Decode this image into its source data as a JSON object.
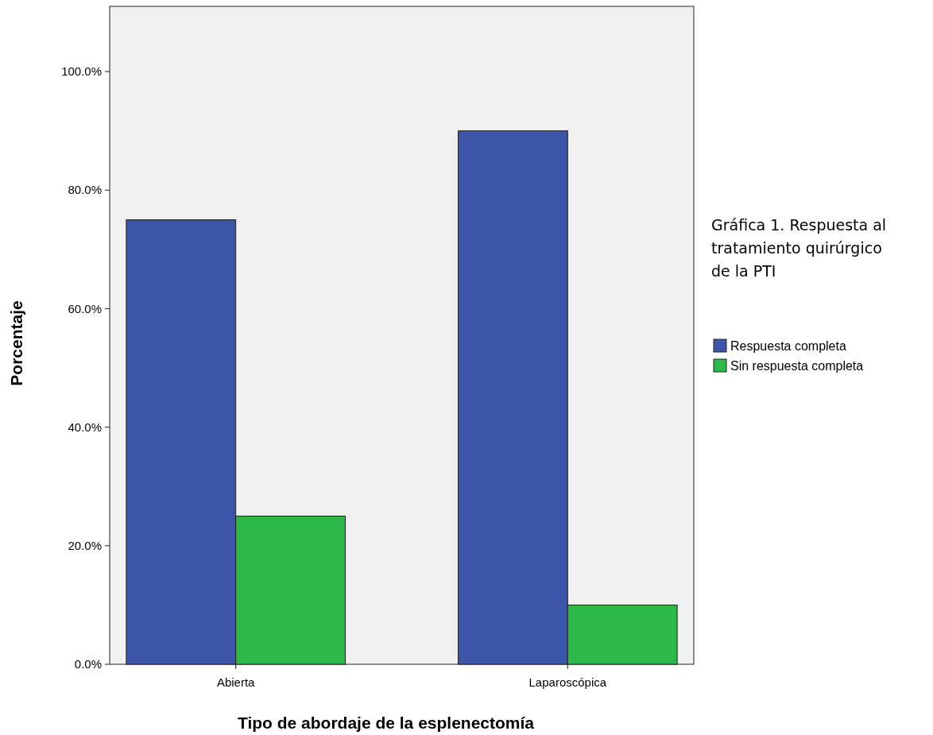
{
  "chart_data": {
    "type": "bar",
    "legend_title": "Gráfica 1. Respuesta al tratamiento quirúrgico de la PTI",
    "xlabel": "Tipo de abordaje de la esplenectomía",
    "ylabel": "Porcentaje",
    "categories": [
      "Abierta",
      "Laparoscópica"
    ],
    "series": [
      {
        "name": "Respuesta completa",
        "color": "#3d55a8",
        "values": [
          75,
          90
        ]
      },
      {
        "name": "Sin respuesta completa",
        "color": "#2db84a",
        "values": [
          25,
          10
        ]
      }
    ],
    "ylim": [
      0,
      111
    ],
    "yticks": [
      {
        "value": 0,
        "label": "0.0%"
      },
      {
        "value": 20,
        "label": "20.0%"
      },
      {
        "value": 40,
        "label": "40.0%"
      },
      {
        "value": 60,
        "label": "60.0%"
      },
      {
        "value": 80,
        "label": "80.0%"
      },
      {
        "value": 100,
        "label": "100.0%"
      }
    ],
    "grid": false,
    "legend": "right"
  }
}
